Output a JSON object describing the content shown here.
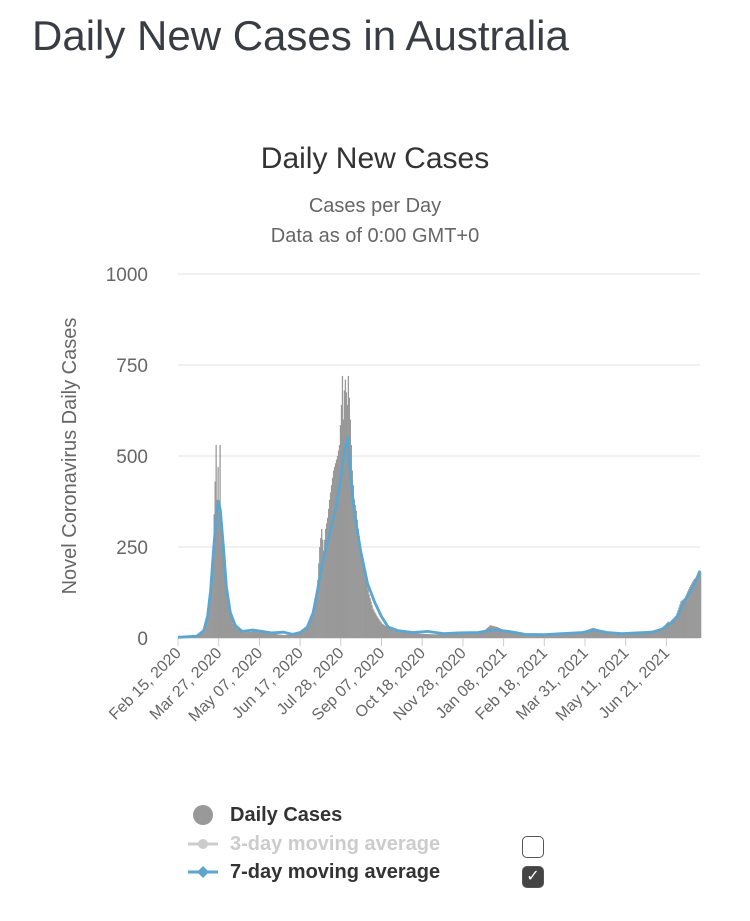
{
  "page": {
    "heading": "Daily New Cases in Australia"
  },
  "chart_data": {
    "type": "bar",
    "title": "Daily New Cases",
    "subtitles": [
      "Cases per Day",
      "Data as of 0:00 GMT+0"
    ],
    "ylabel": "Novel Coronavirus Daily Cases",
    "xlabel": "",
    "ylim": [
      0,
      1000
    ],
    "yticks": [
      0,
      250,
      500,
      750,
      1000
    ],
    "x_start": "2020-02-15",
    "x_end": "2021-07-28",
    "xticks": [
      "Feb 15, 2020",
      "Mar 27, 2020",
      "May 07, 2020",
      "Jun 17, 2020",
      "Jul 28, 2020",
      "Sep 07, 2020",
      "Oct 18, 2020",
      "Nov 28, 2020",
      "Jan 08, 2021",
      "Feb 18, 2021",
      "Mar 31, 2021",
      "May 11, 2021",
      "Jun 21, 2021"
    ],
    "grid": true,
    "legend_position": "bottom",
    "series": [
      {
        "name": "Daily Cases",
        "kind": "bar",
        "color": "#999999",
        "visible": true,
        "points": [
          [
            "2020-02-15",
            2
          ],
          [
            "2020-03-01",
            4
          ],
          [
            "2020-03-10",
            15
          ],
          [
            "2020-03-14",
            40
          ],
          [
            "2020-03-17",
            90
          ],
          [
            "2020-03-19",
            160
          ],
          [
            "2020-03-21",
            250
          ],
          [
            "2020-03-23",
            430
          ],
          [
            "2020-03-24",
            530
          ],
          [
            "2020-03-25",
            380
          ],
          [
            "2020-03-26",
            470
          ],
          [
            "2020-03-27",
            350
          ],
          [
            "2020-03-28",
            530
          ],
          [
            "2020-03-29",
            300
          ],
          [
            "2020-03-31",
            240
          ],
          [
            "2020-04-02",
            180
          ],
          [
            "2020-04-04",
            120
          ],
          [
            "2020-04-06",
            90
          ],
          [
            "2020-04-08",
            60
          ],
          [
            "2020-04-10",
            40
          ],
          [
            "2020-04-14",
            25
          ],
          [
            "2020-04-20",
            15
          ],
          [
            "2020-05-01",
            18
          ],
          [
            "2020-05-10",
            16
          ],
          [
            "2020-05-20",
            12
          ],
          [
            "2020-06-01",
            8
          ],
          [
            "2020-06-10",
            10
          ],
          [
            "2020-06-20",
            18
          ],
          [
            "2020-06-25",
            30
          ],
          [
            "2020-06-30",
            60
          ],
          [
            "2020-07-03",
            100
          ],
          [
            "2020-07-05",
            160
          ],
          [
            "2020-07-07",
            250
          ],
          [
            "2020-07-09",
            300
          ],
          [
            "2020-07-11",
            240
          ],
          [
            "2020-07-13",
            300
          ],
          [
            "2020-07-15",
            330
          ],
          [
            "2020-07-17",
            380
          ],
          [
            "2020-07-19",
            420
          ],
          [
            "2020-07-21",
            460
          ],
          [
            "2020-07-23",
            480
          ],
          [
            "2020-07-25",
            500
          ],
          [
            "2020-07-27",
            530
          ],
          [
            "2020-07-29",
            640
          ],
          [
            "2020-07-30",
            720
          ],
          [
            "2020-07-31",
            600
          ],
          [
            "2020-08-01",
            680
          ],
          [
            "2020-08-02",
            710
          ],
          [
            "2020-08-04",
            640
          ],
          [
            "2020-08-05",
            720
          ],
          [
            "2020-08-07",
            600
          ],
          [
            "2020-08-09",
            460
          ],
          [
            "2020-08-11",
            380
          ],
          [
            "2020-08-13",
            350
          ],
          [
            "2020-08-15",
            300
          ],
          [
            "2020-08-17",
            260
          ],
          [
            "2020-08-20",
            200
          ],
          [
            "2020-08-23",
            160
          ],
          [
            "2020-08-26",
            120
          ],
          [
            "2020-08-30",
            80
          ],
          [
            "2020-09-03",
            60
          ],
          [
            "2020-09-08",
            40
          ],
          [
            "2020-09-14",
            28
          ],
          [
            "2020-09-20",
            20
          ],
          [
            "2020-10-01",
            18
          ],
          [
            "2020-10-15",
            12
          ],
          [
            "2020-11-01",
            10
          ],
          [
            "2020-11-20",
            12
          ],
          [
            "2020-12-10",
            14
          ],
          [
            "2020-12-20",
            18
          ],
          [
            "2020-12-27",
            35
          ],
          [
            "2021-01-03",
            30
          ],
          [
            "2021-01-15",
            15
          ],
          [
            "2021-02-01",
            10
          ],
          [
            "2021-02-15",
            10
          ],
          [
            "2021-03-01",
            12
          ],
          [
            "2021-03-15",
            14
          ],
          [
            "2021-03-31",
            18
          ],
          [
            "2021-04-10",
            28
          ],
          [
            "2021-04-20",
            20
          ],
          [
            "2021-05-01",
            14
          ],
          [
            "2021-05-20",
            15
          ],
          [
            "2021-06-05",
            18
          ],
          [
            "2021-06-15",
            24
          ],
          [
            "2021-06-20",
            30
          ],
          [
            "2021-06-25",
            45
          ],
          [
            "2021-06-28",
            40
          ],
          [
            "2021-07-03",
            60
          ],
          [
            "2021-07-08",
            100
          ],
          [
            "2021-07-12",
            110
          ],
          [
            "2021-07-17",
            140
          ],
          [
            "2021-07-21",
            160
          ],
          [
            "2021-07-25",
            170
          ],
          [
            "2021-07-28",
            180
          ]
        ]
      },
      {
        "name": "3-day moving average",
        "kind": "line",
        "color": "#cccccc",
        "visible": false,
        "points": []
      },
      {
        "name": "7-day moving average",
        "kind": "line",
        "color": "#5ba5cf",
        "visible": true,
        "points": [
          [
            "2020-02-15",
            2
          ],
          [
            "2020-03-05",
            5
          ],
          [
            "2020-03-12",
            20
          ],
          [
            "2020-03-16",
            60
          ],
          [
            "2020-03-19",
            130
          ],
          [
            "2020-03-22",
            240
          ],
          [
            "2020-03-25",
            340
          ],
          [
            "2020-03-27",
            375
          ],
          [
            "2020-03-29",
            350
          ],
          [
            "2020-04-01",
            250
          ],
          [
            "2020-04-04",
            140
          ],
          [
            "2020-04-08",
            70
          ],
          [
            "2020-04-13",
            35
          ],
          [
            "2020-04-20",
            18
          ],
          [
            "2020-05-01",
            22
          ],
          [
            "2020-05-10",
            18
          ],
          [
            "2020-05-20",
            14
          ],
          [
            "2020-06-01",
            16
          ],
          [
            "2020-06-10",
            10
          ],
          [
            "2020-06-18",
            15
          ],
          [
            "2020-06-25",
            30
          ],
          [
            "2020-07-01",
            70
          ],
          [
            "2020-07-06",
            140
          ],
          [
            "2020-07-10",
            200
          ],
          [
            "2020-07-15",
            260
          ],
          [
            "2020-07-20",
            310
          ],
          [
            "2020-07-25",
            370
          ],
          [
            "2020-07-29",
            440
          ],
          [
            "2020-08-02",
            520
          ],
          [
            "2020-08-05",
            550
          ],
          [
            "2020-08-08",
            440
          ],
          [
            "2020-08-12",
            340
          ],
          [
            "2020-08-18",
            240
          ],
          [
            "2020-08-25",
            150
          ],
          [
            "2020-09-01",
            100
          ],
          [
            "2020-09-08",
            60
          ],
          [
            "2020-09-15",
            30
          ],
          [
            "2020-09-25",
            20
          ],
          [
            "2020-10-10",
            15
          ],
          [
            "2020-10-25",
            18
          ],
          [
            "2020-11-10",
            12
          ],
          [
            "2020-11-25",
            14
          ],
          [
            "2020-12-15",
            15
          ],
          [
            "2020-12-25",
            20
          ],
          [
            "2021-01-02",
            22
          ],
          [
            "2021-01-15",
            18
          ],
          [
            "2021-02-01",
            10
          ],
          [
            "2021-02-20",
            9
          ],
          [
            "2021-03-10",
            12
          ],
          [
            "2021-03-31",
            15
          ],
          [
            "2021-04-12",
            22
          ],
          [
            "2021-04-25",
            15
          ],
          [
            "2021-05-10",
            12
          ],
          [
            "2021-05-25",
            14
          ],
          [
            "2021-06-10",
            16
          ],
          [
            "2021-06-20",
            25
          ],
          [
            "2021-06-28",
            40
          ],
          [
            "2021-07-05",
            60
          ],
          [
            "2021-07-12",
            100
          ],
          [
            "2021-07-19",
            130
          ],
          [
            "2021-07-25",
            165
          ],
          [
            "2021-07-28",
            185
          ]
        ]
      }
    ]
  },
  "legend": {
    "items": [
      {
        "label": "Daily Cases",
        "color": "#999999",
        "text_color": "#333333",
        "marker": "circle",
        "checkbox": false
      },
      {
        "label": "3-day moving average",
        "color": "#cccccc",
        "text_color": "#cccccc",
        "marker": "line-circle",
        "checkbox": true,
        "checked": false
      },
      {
        "label": "7-day moving average",
        "color": "#5ba5cf",
        "text_color": "#333333",
        "marker": "line-diamond",
        "checkbox": true,
        "checked": true
      }
    ]
  }
}
